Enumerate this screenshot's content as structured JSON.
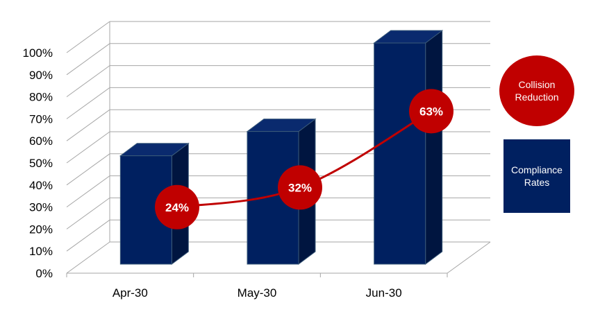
{
  "chart_data": {
    "type": "bar",
    "categories": [
      "Apr-30",
      "May-30",
      "Jun-30"
    ],
    "series": [
      {
        "name": "Compliance Rates",
        "kind": "bar",
        "values": [
          49,
          60,
          100
        ]
      },
      {
        "name": "Collision Reduction",
        "kind": "line",
        "values": [
          24,
          32,
          63
        ],
        "labels": [
          "24%",
          "32%",
          "63%"
        ]
      }
    ],
    "y_ticks": [
      "0%",
      "10%",
      "20%",
      "30%",
      "40%",
      "50%",
      "60%",
      "70%",
      "80%",
      "90%",
      "100%"
    ],
    "ylim": [
      0,
      100
    ],
    "grid": true,
    "legend_position": "right",
    "colors": {
      "bar": "#002060",
      "bar_top": "#0a2a6e",
      "bar_side": "#001540",
      "line": "#c00000",
      "grid": "#a6a6a6",
      "legend_circle": "#c00000",
      "legend_box": "#002060"
    }
  },
  "legend": {
    "collision_reduction": {
      "line1": "Collision",
      "line2": "Reduction"
    },
    "compliance_rates": {
      "line1": "Compliance",
      "line2": "Rates"
    }
  }
}
